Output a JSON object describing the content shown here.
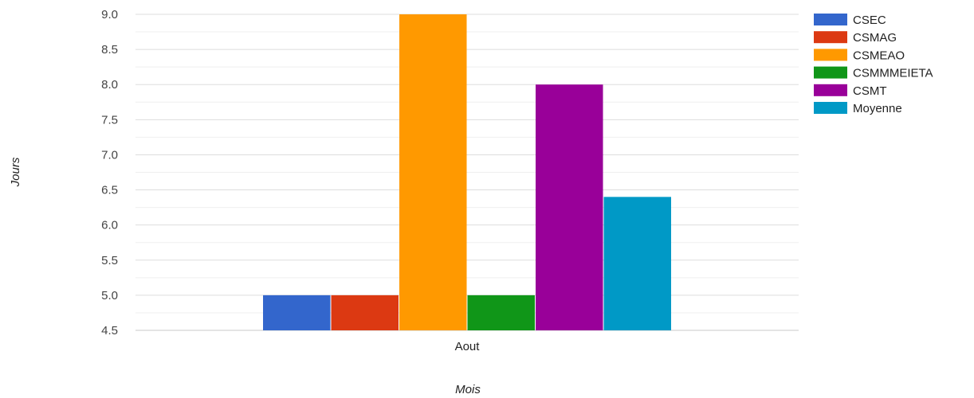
{
  "chart_data": {
    "type": "bar",
    "categories": [
      "Aout"
    ],
    "series": [
      {
        "name": "CSEC",
        "values": [
          5.0
        ],
        "color": "#3366cc"
      },
      {
        "name": "CSMAG",
        "values": [
          5.0
        ],
        "color": "#dc3912"
      },
      {
        "name": "CSMEAO",
        "values": [
          9.0
        ],
        "color": "#ff9900"
      },
      {
        "name": "CSMMMEIETA",
        "values": [
          5.0
        ],
        "color": "#109618"
      },
      {
        "name": "CSMT",
        "values": [
          8.0
        ],
        "color": "#990099"
      },
      {
        "name": "Moyenne",
        "values": [
          6.4
        ],
        "color": "#0099c6"
      }
    ],
    "xlabel": "Mois",
    "ylabel": "Jours",
    "ylim": [
      4.5,
      9.0
    ],
    "yticks": [
      "9.0",
      "8.5",
      "8.0",
      "7.5",
      "7.0",
      "6.5",
      "6.0",
      "5.5",
      "5.0",
      "4.5"
    ],
    "grid": true,
    "legend_position": "right"
  }
}
